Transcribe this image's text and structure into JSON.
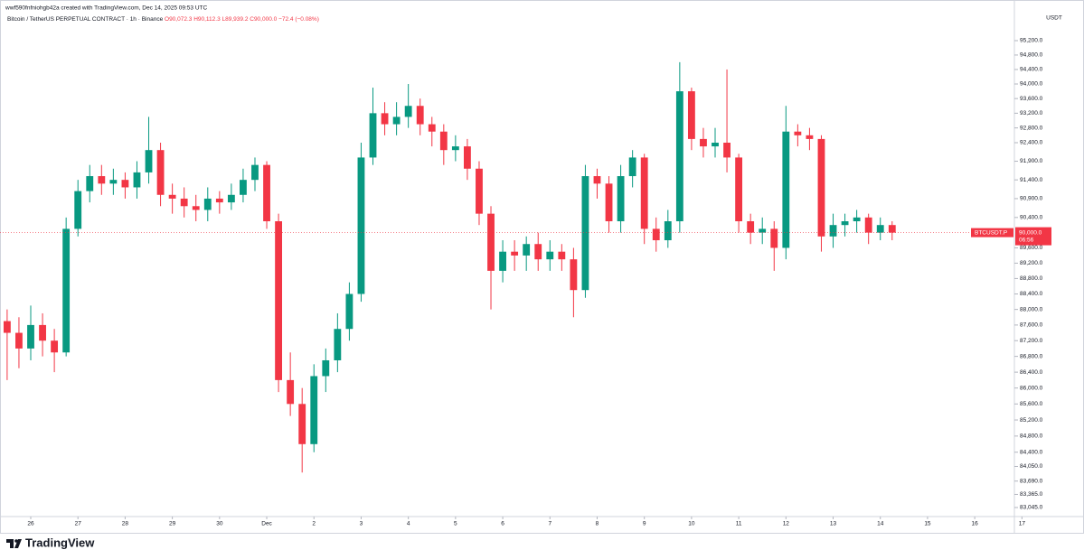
{
  "chart_data": {
    "type": "candlestick",
    "watermark": "wwf590fnfniohgb42a created with TradingView.com, Dec 14, 2025 09:53 UTC",
    "legend": {
      "symbol": "Bitcoin / TetherUS PERPETUAL CONTRACT · 1h · Binance",
      "open": "O90,072.3",
      "high": "H90,112.3",
      "low": "L89,939.2",
      "close": "C90,000.0",
      "change": "−72.4 (−0.08%)"
    },
    "currency": "USDT",
    "brand": "TradingView",
    "log_scale": true,
    "up_color": "#089981",
    "down_color": "#f23645",
    "last_price": {
      "symbol": "BTCUSDT.P",
      "value": 90000,
      "label": "90,000.0",
      "countdown": "06:56"
    },
    "xlim": [
      -0.6513,
      20.84
    ],
    "ylim": [
      82826,
      95983
    ],
    "xticks": [
      {
        "value": 0,
        "label": "26"
      },
      {
        "value": 1,
        "label": "27"
      },
      {
        "value": 2,
        "label": "28"
      },
      {
        "value": 3,
        "label": "29"
      },
      {
        "value": 4,
        "label": "30"
      },
      {
        "value": 5,
        "label": "Dec"
      },
      {
        "value": 6,
        "label": "2"
      },
      {
        "value": 7,
        "label": "3"
      },
      {
        "value": 8,
        "label": "4"
      },
      {
        "value": 9,
        "label": "5"
      },
      {
        "value": 10,
        "label": "6"
      },
      {
        "value": 11,
        "label": "7"
      },
      {
        "value": 12,
        "label": "8"
      },
      {
        "value": 13,
        "label": "9"
      },
      {
        "value": 14,
        "label": "10"
      },
      {
        "value": 15,
        "label": "11"
      },
      {
        "value": 16,
        "label": "12"
      },
      {
        "value": 17,
        "label": "13"
      },
      {
        "value": 18,
        "label": "14"
      },
      {
        "value": 19,
        "label": "15"
      },
      {
        "value": 20,
        "label": "16"
      },
      {
        "value": 21,
        "label": "17"
      }
    ],
    "yticks": [
      {
        "value": 95200,
        "label": "95,200.0"
      },
      {
        "value": 94800,
        "label": "94,800.0"
      },
      {
        "value": 94400,
        "label": "94,400.0"
      },
      {
        "value": 94000,
        "label": "94,000.0"
      },
      {
        "value": 93600,
        "label": "93,600.0"
      },
      {
        "value": 93200,
        "label": "93,200.0"
      },
      {
        "value": 92800,
        "label": "92,800.0"
      },
      {
        "value": 92400,
        "label": "92,400.0"
      },
      {
        "value": 91900,
        "label": "91,900.0"
      },
      {
        "value": 91400,
        "label": "91,400.0"
      },
      {
        "value": 90900,
        "label": "90,900.0"
      },
      {
        "value": 90400,
        "label": "90,400.0"
      },
      {
        "value": 89600,
        "label": "89,600.0"
      },
      {
        "value": 89200,
        "label": "89,200.0"
      },
      {
        "value": 88800,
        "label": "88,800.0"
      },
      {
        "value": 88400,
        "label": "88,400.0"
      },
      {
        "value": 88000,
        "label": "88,000.0"
      },
      {
        "value": 87600,
        "label": "87,600.0"
      },
      {
        "value": 87200,
        "label": "87,200.0"
      },
      {
        "value": 86800,
        "label": "86,800.0"
      },
      {
        "value": 86400,
        "label": "86,400.0"
      },
      {
        "value": 86000,
        "label": "86,000.0"
      },
      {
        "value": 85600,
        "label": "85,600.0"
      },
      {
        "value": 85200,
        "label": "85,200.0"
      },
      {
        "value": 84800,
        "label": "84,800.0"
      },
      {
        "value": 84400,
        "label": "84,400.0"
      },
      {
        "value": 84050,
        "label": "84,050.0"
      },
      {
        "value": 83690,
        "label": "83,690.0"
      },
      {
        "value": 83365,
        "label": "83,365.0"
      },
      {
        "value": 83045,
        "label": "83,045.0"
      }
    ],
    "x": [
      -0.5,
      -0.25,
      0,
      0.25,
      0.5,
      0.75,
      1,
      1.25,
      1.5,
      1.75,
      2,
      2.25,
      2.5,
      2.75,
      3,
      3.25,
      3.5,
      3.75,
      4,
      4.25,
      4.5,
      4.75,
      5,
      5.25,
      5.5,
      5.75,
      6,
      6.25,
      6.5,
      6.75,
      7,
      7.25,
      7.5,
      7.75,
      8,
      8.25,
      8.5,
      8.75,
      9,
      9.25,
      9.5,
      9.75,
      10,
      10.25,
      10.5,
      10.75,
      11,
      11.25,
      11.5,
      11.75,
      12,
      12.25,
      12.5,
      12.75,
      13,
      13.25,
      13.5,
      13.75,
      14,
      14.25,
      14.5,
      14.75,
      15,
      15.25,
      15.5,
      15.75,
      16,
      16.25,
      16.5,
      16.75,
      17,
      17.25,
      17.5,
      17.75,
      18,
      18.25
    ],
    "open": [
      87700,
      87400,
      87000,
      87600,
      87200,
      86900,
      90100,
      91100,
      91500,
      91300,
      91400,
      91200,
      91600,
      92200,
      91000,
      90900,
      90700,
      90600,
      90900,
      90800,
      91000,
      91400,
      91800,
      90300,
      86200,
      85600,
      84600,
      86300,
      86700,
      87500,
      88400,
      92000,
      93200,
      92900,
      93100,
      93400,
      92900,
      92700,
      92200,
      92300,
      91700,
      90500,
      89000,
      89500,
      89400,
      89700,
      89300,
      89500,
      89300,
      88500,
      91500,
      91300,
      90300,
      91500,
      92000,
      90100,
      89800,
      90300,
      93800,
      92500,
      92300,
      92400,
      92000,
      90300,
      90000,
      90100,
      89600,
      92700,
      92600,
      92500,
      89900,
      90200,
      90300,
      90400,
      90000,
      90200
    ],
    "high": [
      88000,
      87800,
      88100,
      87900,
      87500,
      90400,
      91400,
      91800,
      91800,
      91700,
      91600,
      91900,
      93100,
      92400,
      91300,
      91200,
      91000,
      91200,
      91100,
      91300,
      91700,
      92000,
      91900,
      90500,
      86900,
      86000,
      86600,
      87000,
      87900,
      88700,
      92400,
      93900,
      93500,
      93500,
      94000,
      93600,
      93100,
      92900,
      92600,
      92500,
      91900,
      90700,
      89800,
      89800,
      89900,
      90000,
      89800,
      89700,
      89600,
      91800,
      91700,
      91500,
      91800,
      92200,
      92100,
      90400,
      90600,
      94600,
      93900,
      92800,
      92800,
      94400,
      92100,
      90500,
      90400,
      90300,
      93400,
      92900,
      92800,
      92600,
      90500,
      90500,
      90600,
      90500,
      90400,
      90300
    ],
    "low": [
      86200,
      86500,
      86700,
      86800,
      86400,
      86800,
      89900,
      90800,
      91000,
      91000,
      90900,
      90900,
      91300,
      90700,
      90500,
      90400,
      90300,
      90300,
      90500,
      90600,
      90800,
      91100,
      90100,
      85900,
      85300,
      83900,
      84400,
      85900,
      86400,
      87200,
      88200,
      91800,
      92600,
      92600,
      92800,
      92600,
      92300,
      91800,
      91900,
      91400,
      90200,
      88000,
      88700,
      89000,
      89000,
      89000,
      89000,
      89000,
      87800,
      88300,
      90900,
      90000,
      90000,
      91200,
      89700,
      89500,
      89600,
      90000,
      92200,
      92000,
      92000,
      91600,
      90000,
      89700,
      89700,
      89000,
      89300,
      92300,
      92200,
      89500,
      89600,
      89900,
      90000,
      89700,
      89800,
      89800
    ],
    "close": [
      87400,
      87000,
      87600,
      87200,
      86900,
      90100,
      91100,
      91500,
      91300,
      91400,
      91200,
      91600,
      92200,
      91000,
      90900,
      90700,
      90600,
      90900,
      90800,
      91000,
      91400,
      91800,
      90300,
      86200,
      85600,
      84600,
      86300,
      86700,
      87500,
      88400,
      92000,
      93200,
      92900,
      93100,
      93400,
      92900,
      92700,
      92200,
      92300,
      91700,
      90500,
      89000,
      89500,
      89400,
      89700,
      89300,
      89500,
      89300,
      88500,
      91500,
      91300,
      90300,
      91500,
      92000,
      90100,
      89800,
      90300,
      93800,
      92500,
      92300,
      92400,
      92000,
      90300,
      90000,
      90100,
      89600,
      92700,
      92600,
      92500,
      89900,
      90200,
      90300,
      90400,
      90000,
      90200,
      90000
    ]
  }
}
